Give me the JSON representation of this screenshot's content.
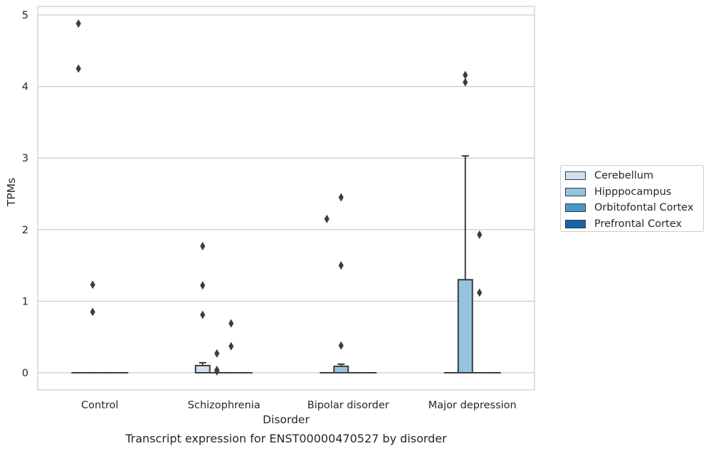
{
  "chart_data": {
    "type": "box",
    "title": "",
    "caption": "Transcript expression for ENST00000470527 by disorder",
    "xlabel": "Disorder",
    "ylabel": "TPMs",
    "ylim": [
      -0.23,
      5.13
    ],
    "yticks": [
      0,
      1,
      2,
      3,
      4,
      5
    ],
    "grid": true,
    "legend_position": "right",
    "categories": [
      "Control",
      "Schizophrenia",
      "Bipolar disorder",
      "Major depression"
    ],
    "series": [
      {
        "name": "Cerebellum",
        "color": "#d0e1f2"
      },
      {
        "name": "Hipppocampus",
        "color": "#94c4df"
      },
      {
        "name": "Orbitofontal Cortex",
        "color": "#4a98c9"
      },
      {
        "name": "Prefrontal Cortex",
        "color": "#1764ab"
      }
    ],
    "boxes": [
      [
        {
          "q1": 0,
          "median": 0,
          "q3": 0,
          "whisker_low": 0,
          "whisker_high": 0,
          "outliers": [
            4.88,
            4.25
          ]
        },
        {
          "q1": 0,
          "median": 0,
          "q3": 0,
          "whisker_low": 0,
          "whisker_high": 0,
          "outliers": [
            1.23,
            0.85
          ]
        },
        {
          "q1": 0,
          "median": 0,
          "q3": 0,
          "whisker_low": 0,
          "whisker_high": 0,
          "outliers": []
        },
        {
          "q1": 0,
          "median": 0,
          "q3": 0,
          "whisker_low": 0,
          "whisker_high": 0,
          "outliers": []
        }
      ],
      [
        {
          "q1": 0,
          "median": 0,
          "q3": 0.1,
          "whisker_low": 0,
          "whisker_high": 0.14,
          "outliers": [
            1.77,
            1.22,
            0.81
          ]
        },
        {
          "q1": 0,
          "median": 0,
          "q3": 0,
          "whisker_low": 0,
          "whisker_high": 0,
          "outliers": [
            0.27,
            0.04,
            0.02
          ]
        },
        {
          "q1": 0,
          "median": 0,
          "q3": 0,
          "whisker_low": 0,
          "whisker_high": 0,
          "outliers": [
            0.69,
            0.37
          ]
        },
        {
          "q1": 0,
          "median": 0,
          "q3": 0,
          "whisker_low": 0,
          "whisker_high": 0,
          "outliers": []
        }
      ],
      [
        {
          "q1": 0,
          "median": 0,
          "q3": 0,
          "whisker_low": 0,
          "whisker_high": 0,
          "outliers": [
            2.15
          ]
        },
        {
          "q1": 0,
          "median": 0,
          "q3": 0.09,
          "whisker_low": 0,
          "whisker_high": 0.12,
          "outliers": [
            2.45,
            1.5,
            0.38
          ]
        },
        {
          "q1": 0,
          "median": 0,
          "q3": 0,
          "whisker_low": 0,
          "whisker_high": 0,
          "outliers": []
        },
        {
          "q1": 0,
          "median": 0,
          "q3": 0,
          "whisker_low": 0,
          "whisker_high": 0,
          "outliers": []
        }
      ],
      [
        {
          "q1": 0,
          "median": 0,
          "q3": 0,
          "whisker_low": 0,
          "whisker_high": 0,
          "outliers": []
        },
        {
          "q1": 0,
          "median": 0,
          "q3": 1.3,
          "whisker_low": 0,
          "whisker_high": 3.03,
          "outliers": [
            4.16,
            4.06
          ]
        },
        {
          "q1": 0,
          "median": 0,
          "q3": 0,
          "whisker_low": 0,
          "whisker_high": 0,
          "outliers": [
            1.12,
            1.93
          ]
        },
        {
          "q1": 0,
          "median": 0,
          "q3": 0,
          "whisker_low": 0,
          "whisker_high": 0,
          "outliers": []
        }
      ]
    ]
  }
}
